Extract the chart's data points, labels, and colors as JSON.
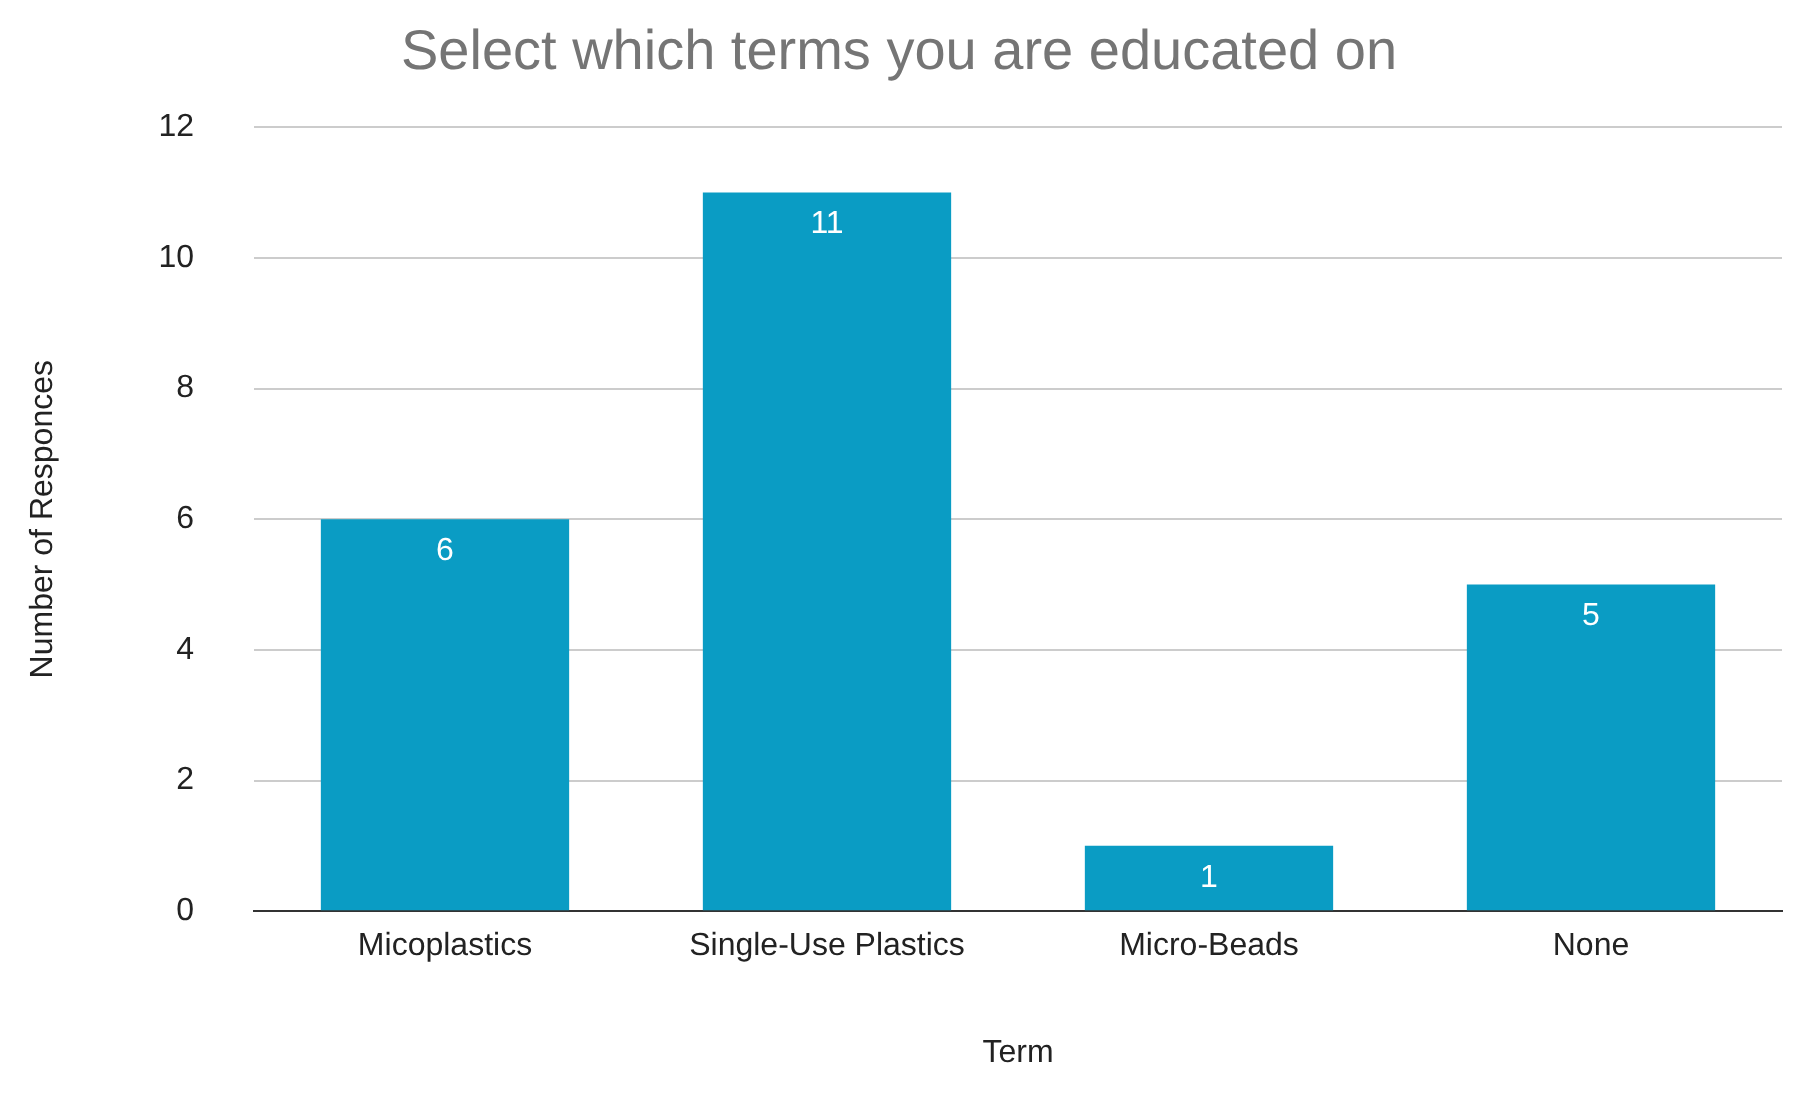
{
  "chart_data": {
    "type": "bar",
    "title": "Select which terms you are educated on",
    "xlabel": "Term",
    "ylabel": "Number of Responces",
    "categories": [
      "Micoplastics",
      "Single-Use Plastics",
      "Micro-Beads",
      "None"
    ],
    "values": [
      6,
      11,
      1,
      5
    ],
    "color": "#0a9cc4",
    "ylim": [
      0,
      12
    ],
    "yticks": [
      0,
      2,
      4,
      6,
      8,
      10,
      12
    ],
    "grid": "y",
    "data_labels": true,
    "legend": false
  }
}
